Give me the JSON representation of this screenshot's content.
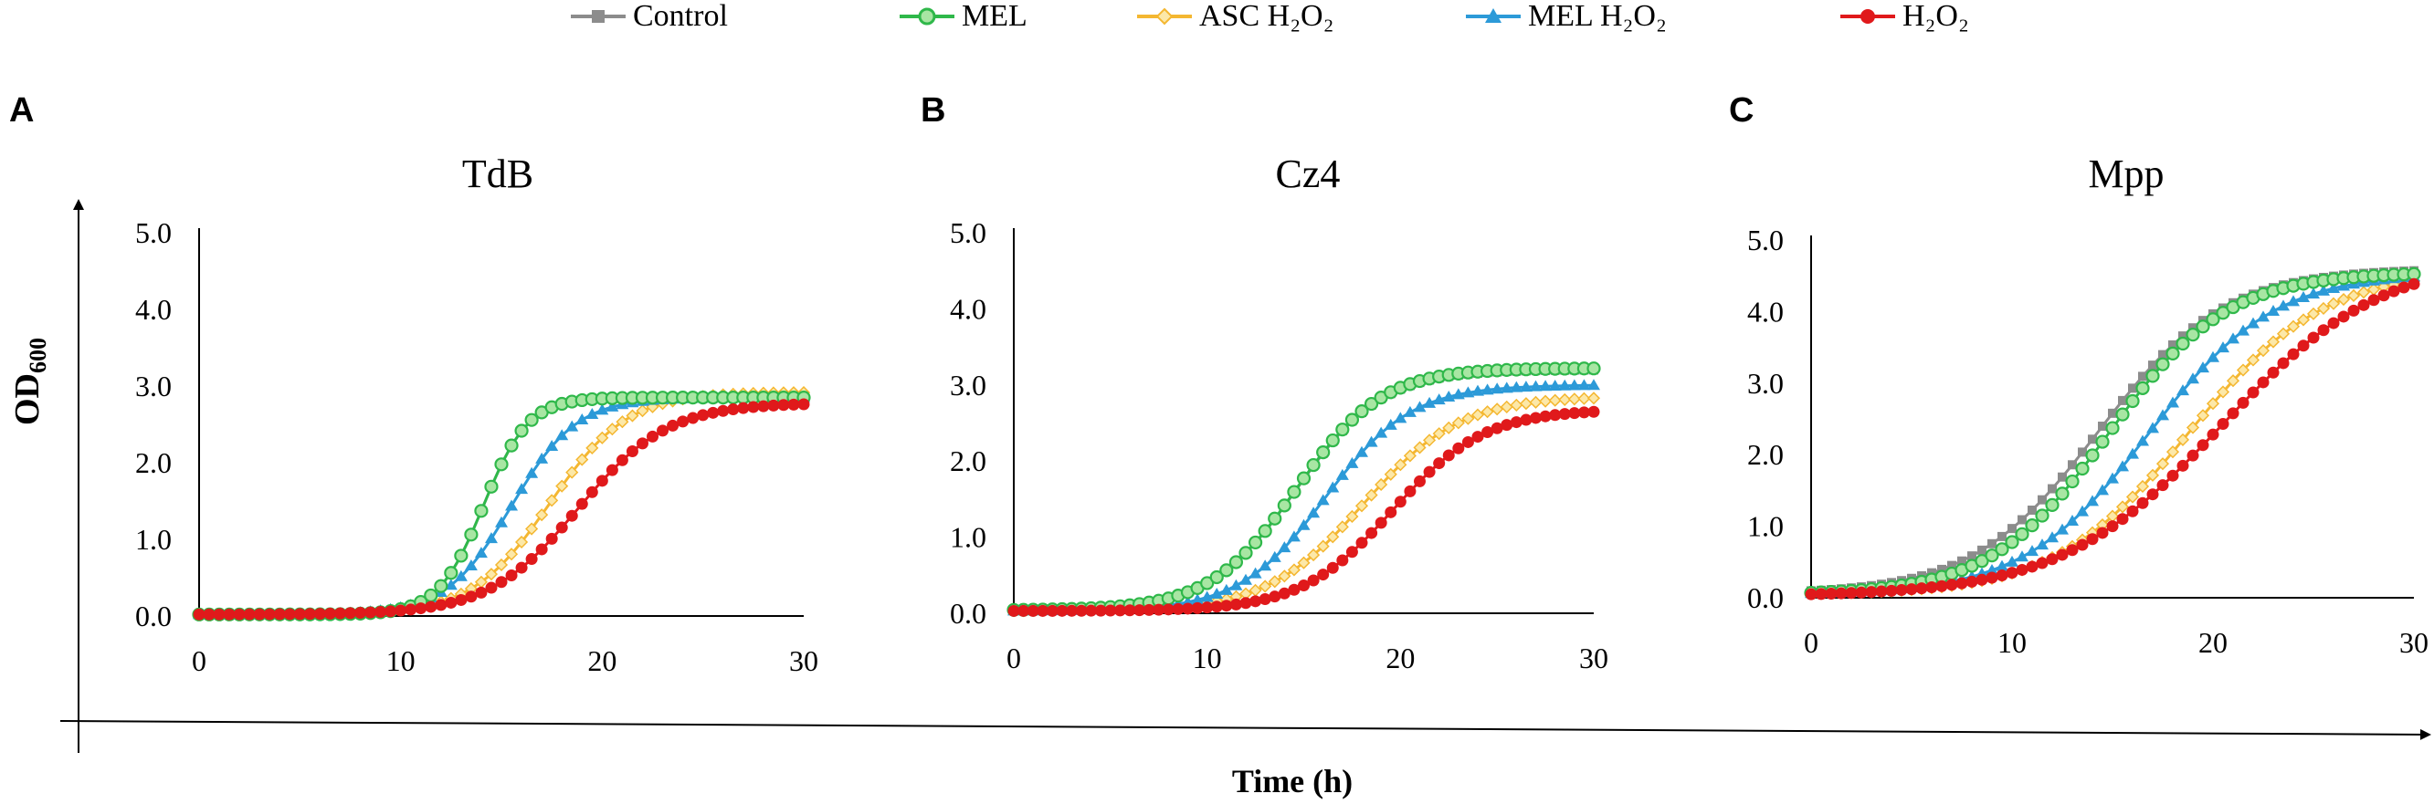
{
  "legend": {
    "items": [
      {
        "label": "Control",
        "color": "#8c8c8c",
        "marker": "square"
      },
      {
        "label": "MEL",
        "color": "#2fb84a",
        "marker": "circle"
      },
      {
        "label": "ASC H₂O₂",
        "color": "#f4b731",
        "marker": "diamond"
      },
      {
        "label": "MEL H₂O₂",
        "color": "#2c9ad8",
        "marker": "triangle"
      },
      {
        "label": "H₂O₂",
        "color": "#e0191b",
        "marker": "circle"
      }
    ]
  },
  "axes": {
    "y_label": "OD600",
    "y_label_main": "OD",
    "y_label_sub": "600",
    "x_label": "Time (h)"
  },
  "chart_data": [
    {
      "type": "line",
      "panel_letter": "A",
      "title": "TdB",
      "xlabel": "Time (h)",
      "ylabel": "OD600",
      "xlim": [
        0,
        30
      ],
      "ylim": [
        0,
        5
      ],
      "x_ticks": [
        "0",
        "10",
        "20",
        "30"
      ],
      "y_ticks": [
        "0.0",
        "1.0",
        "2.0",
        "3.0",
        "4.0",
        "5.0"
      ],
      "series": [
        {
          "name": "Control",
          "curve": {
            "k": 0.9,
            "t0": 14.1,
            "top": 2.85,
            "base": 0.02
          }
        },
        {
          "name": "MEL",
          "curve": {
            "k": 0.9,
            "t0": 14.1,
            "top": 2.85,
            "base": 0.02
          }
        },
        {
          "name": "ASC H₂O₂",
          "curve": {
            "k": 0.52,
            "t0": 17.4,
            "top": 2.92,
            "base": 0.02
          }
        },
        {
          "name": "MEL H₂O₂",
          "curve": {
            "k": 0.62,
            "t0": 15.5,
            "top": 2.85,
            "base": 0.02
          }
        },
        {
          "name": "H₂O₂",
          "curve": {
            "k": 0.45,
            "t0": 18.8,
            "top": 2.78,
            "base": 0.02
          }
        }
      ]
    },
    {
      "type": "line",
      "panel_letter": "B",
      "title": "Cz4",
      "xlabel": "Time (h)",
      "ylabel": "OD600",
      "xlim": [
        0,
        30
      ],
      "ylim": [
        0,
        5
      ],
      "x_ticks": [
        "0",
        "10",
        "20",
        "30"
      ],
      "y_ticks": [
        "0.0",
        "1.0",
        "2.0",
        "3.0",
        "4.0",
        "5.0"
      ],
      "series": [
        {
          "name": "Control",
          "curve": {
            "k": 0.45,
            "t0": 14.6,
            "top": 3.2,
            "base": 0.04
          }
        },
        {
          "name": "MEL",
          "curve": {
            "k": 0.45,
            "t0": 14.6,
            "top": 3.22,
            "base": 0.04
          }
        },
        {
          "name": "ASC H₂O₂",
          "curve": {
            "k": 0.4,
            "t0": 18.1,
            "top": 2.85,
            "base": 0.03
          }
        },
        {
          "name": "MEL H₂O₂",
          "curve": {
            "k": 0.45,
            "t0": 16.1,
            "top": 3.0,
            "base": 0.03
          }
        },
        {
          "name": "H₂O₂",
          "curve": {
            "k": 0.42,
            "t0": 19.6,
            "top": 2.68,
            "base": 0.03
          }
        }
      ]
    },
    {
      "type": "line",
      "panel_letter": "C",
      "title": "Mpp",
      "xlabel": "Time (h)",
      "ylabel": "OD600",
      "xlim": [
        0,
        30
      ],
      "ylim": [
        0,
        5
      ],
      "x_ticks": [
        "0",
        "10",
        "20",
        "30"
      ],
      "y_ticks": [
        "0.0",
        "1.0",
        "2.0",
        "3.0",
        "4.0",
        "5.0"
      ],
      "series": [
        {
          "name": "Control",
          "curve": {
            "k": 0.32,
            "t0": 14.3,
            "top": 4.6,
            "base": 0.05
          }
        },
        {
          "name": "MEL",
          "curve": {
            "k": 0.34,
            "t0": 14.8,
            "top": 4.55,
            "base": 0.04
          }
        },
        {
          "name": "ASC H₂O₂",
          "curve": {
            "k": 0.3,
            "t0": 18.8,
            "top": 4.58,
            "base": 0.04
          }
        },
        {
          "name": "MEL H₂O₂",
          "curve": {
            "k": 0.32,
            "t0": 16.8,
            "top": 4.55,
            "base": 0.04
          }
        },
        {
          "name": "H₂O₂",
          "curve": {
            "k": 0.25,
            "t0": 20.4,
            "top": 4.78,
            "base": 0.02
          }
        }
      ]
    }
  ]
}
